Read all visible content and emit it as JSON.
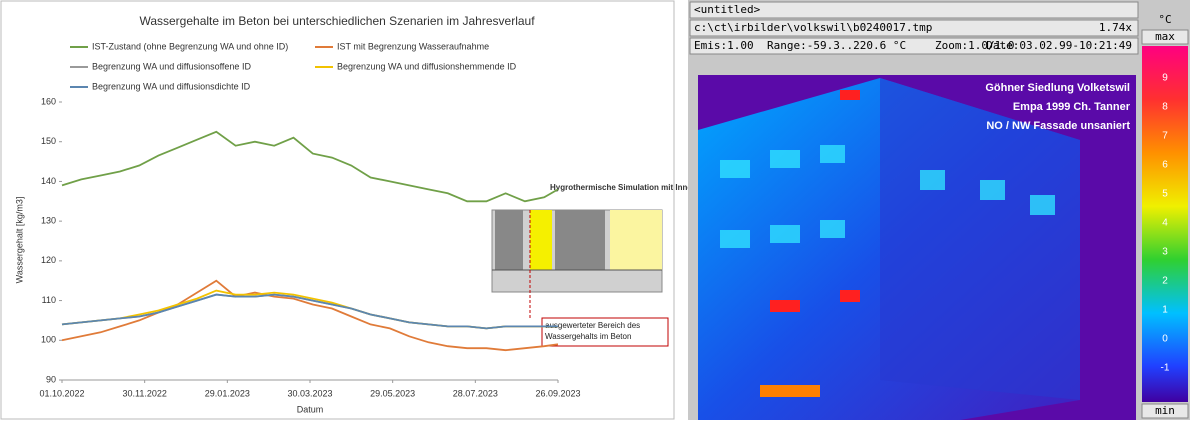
{
  "chart_data": {
    "type": "line",
    "title": "Wassergehalte im Beton bei unterschiedlichen Szenarien im Jahresverlauf",
    "x_label": "Datum",
    "y_label": "Wassergehalt [kg/m3]",
    "x": [
      "01.10.2022",
      "15.10.2022",
      "29.10.2022",
      "12.11.2022",
      "26.11.2022",
      "10.12.2022",
      "24.12.2022",
      "07.01.2023",
      "21.01.2023",
      "04.02.2023",
      "18.02.2023",
      "04.03.2023",
      "18.03.2023",
      "01.04.2023",
      "15.04.2023",
      "29.04.2023",
      "13.05.2023",
      "27.05.2023",
      "10.06.2023",
      "24.06.2023",
      "08.07.2023",
      "22.07.2023",
      "05.08.2023",
      "19.08.2023",
      "02.09.2023",
      "16.09.2023",
      "26.09.2023"
    ],
    "series": [
      {
        "name": "IST-Zustand (ohne Begrenzung WA und ohne ID)",
        "color": "#70a048",
        "values": [
          139,
          140.5,
          141.5,
          142.5,
          144,
          146.5,
          148.5,
          150.5,
          152.5,
          149,
          150,
          149,
          151,
          147,
          146,
          144,
          141,
          140,
          139,
          138,
          137,
          135,
          135,
          137,
          135,
          136,
          138
        ]
      },
      {
        "name": "IST mit Begrenzung Wasseraufnahme",
        "color": "#e07b39",
        "values": [
          100,
          101,
          102,
          103.5,
          105,
          107,
          109,
          112,
          115,
          111,
          112,
          111,
          110.5,
          109,
          108,
          106,
          104,
          103,
          101,
          99.5,
          98.5,
          98,
          98,
          97.5,
          98,
          98.5,
          99
        ]
      },
      {
        "name": "Begrenzung WA und diffusionsoffene ID",
        "color": "#9a9a9a",
        "values": [
          104,
          104.5,
          105,
          105.5,
          106,
          107,
          108.5,
          110,
          111.5,
          111,
          111,
          111.5,
          111,
          110,
          109,
          108,
          106.5,
          105.5,
          104.5,
          104,
          103.5,
          103.5,
          103,
          103.5,
          103.5,
          103.5,
          103.5
        ]
      },
      {
        "name": "Begrenzung WA und diffusionshemmende ID",
        "color": "#f2c200",
        "values": [
          104,
          104.5,
          105,
          105.5,
          106.5,
          107.5,
          109,
          110.5,
          112.5,
          111.5,
          111.5,
          112,
          111.5,
          110.5,
          109.5,
          108,
          106.5,
          105.5,
          104.5,
          104,
          103.5,
          103.5,
          103,
          103.5,
          103.5,
          103.5,
          103.5
        ]
      },
      {
        "name": "Begrenzung WA und diffusionsdichte ID",
        "color": "#5b86b0",
        "values": [
          104,
          104.5,
          105,
          105.5,
          106,
          107,
          108.5,
          110,
          111.5,
          111,
          111,
          111.5,
          111,
          110,
          109,
          108,
          106.5,
          105.5,
          104.5,
          104,
          103.5,
          103.5,
          103,
          103.5,
          103.5,
          103.5,
          103.5
        ]
      }
    ],
    "xlim": [
      "01.10.2022",
      "26.09.2023"
    ],
    "xticks": [
      "01.10.2022",
      "30.11.2022",
      "29.01.2023",
      "30.03.2023",
      "29.05.2023",
      "28.07.2023",
      "26.09.2023"
    ],
    "ylim": [
      90,
      160
    ],
    "yticks": [
      90,
      100,
      110,
      120,
      130,
      140,
      150,
      160
    ],
    "inset_title": "Hygrothermische Simulation mit Innendämmung",
    "annotation": "ausgewerteter Bereich des Wassergehalts im Beton"
  },
  "thermal_viewer": {
    "window_title": "<untitled>",
    "unit": "°C",
    "file": "c:\\ct\\irbilder\\volkswil\\b0240017.tmp",
    "zoom_factor": "1.74x",
    "max": "max",
    "min": "min",
    "emis": "Emis:1.00",
    "range": "Range:-59.3..220.6 °C",
    "zoom": "Zoom:1.0/1.0",
    "date": "Date:03.02.99-10:21:49",
    "overlay": [
      "Göhner Siedlung Volketswil",
      "Empa 1999 Ch. Tanner",
      "NO / NW Fassade unsaniert"
    ],
    "scale_labels": [
      "9",
      "8",
      "7",
      "6",
      "5",
      "4",
      "3",
      "2",
      "1",
      "0",
      "-1"
    ]
  }
}
